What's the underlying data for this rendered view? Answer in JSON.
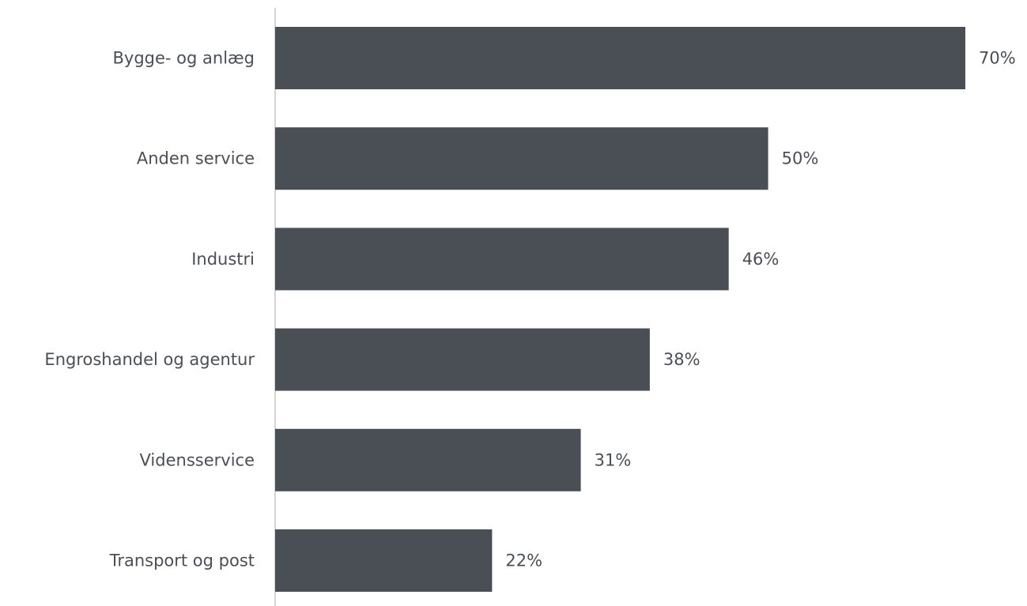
{
  "chart_data": {
    "type": "bar",
    "orientation": "horizontal",
    "categories": [
      "Bygge- og anlæg",
      "Anden service",
      "Industri",
      "Engroshandel og agentur",
      "Vidensservice",
      "Transport og post"
    ],
    "values": [
      70,
      50,
      46,
      38,
      31,
      22
    ],
    "value_labels": [
      "70%",
      "50%",
      "46%",
      "38%",
      "31%",
      "22%"
    ],
    "unit": "%",
    "xlim": [
      0,
      70
    ],
    "grid": false,
    "legend": "none",
    "title": "",
    "xlabel": "",
    "ylabel": ""
  },
  "colors": {
    "bar": "#4a4f56",
    "axis": "#d4d4d4",
    "text": "#4a4f55"
  }
}
